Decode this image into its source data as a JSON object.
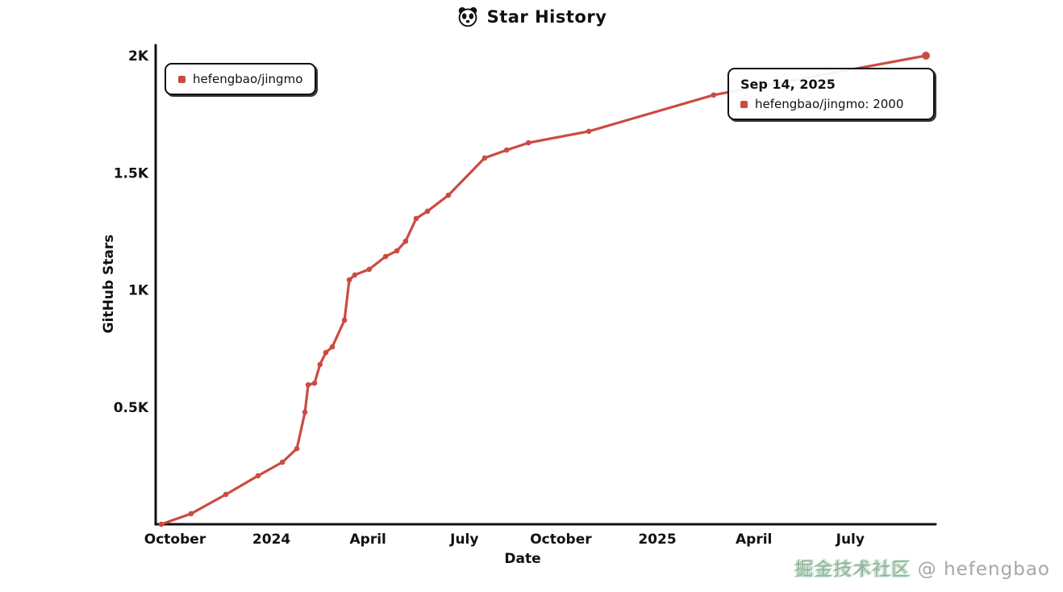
{
  "title": {
    "text": "Star History"
  },
  "legend": {
    "label": "hefengbao/jingmo"
  },
  "tooltip": {
    "date": "Sep 14, 2025",
    "label": "hefengbao/jingmo",
    "sep": ": ",
    "value": "2000"
  },
  "watermark": {
    "cn": "掘金技术社区",
    "rest": " @ hefengbao"
  },
  "chart_data": {
    "type": "line",
    "title": "Star History",
    "xlabel": "Date",
    "ylabel": "GitHub Stars",
    "x_unit": "months since October 2023",
    "ylim": [
      0,
      2000
    ],
    "grid": false,
    "legend_position": "top-left",
    "x_ticks": [
      {
        "label": "October",
        "m": 0
      },
      {
        "label": "2024",
        "m": 3
      },
      {
        "label": "April",
        "m": 6
      },
      {
        "label": "July",
        "m": 9
      },
      {
        "label": "October",
        "m": 12
      },
      {
        "label": "2025",
        "m": 15
      },
      {
        "label": "April",
        "m": 18
      },
      {
        "label": "July",
        "m": 21
      }
    ],
    "y_ticks": [
      {
        "label": "2K",
        "value": 2000
      },
      {
        "label": "1.5K",
        "value": 1500
      },
      {
        "label": "1K",
        "value": 1000
      },
      {
        "label": "0.5K",
        "value": 500
      }
    ],
    "series": [
      {
        "name": "hefengbao/jingmo",
        "color": "#cb4b42",
        "points": [
          [
            -0.43,
            0
          ],
          [
            0.5,
            45
          ],
          [
            1.58,
            127
          ],
          [
            2.58,
            207
          ],
          [
            3.34,
            265
          ],
          [
            3.79,
            323
          ],
          [
            4.04,
            478
          ],
          [
            4.14,
            595
          ],
          [
            4.34,
            602
          ],
          [
            4.51,
            682
          ],
          [
            4.69,
            733
          ],
          [
            4.89,
            757
          ],
          [
            5.27,
            871
          ],
          [
            5.42,
            1043
          ],
          [
            5.59,
            1064
          ],
          [
            6.04,
            1088
          ],
          [
            6.55,
            1143
          ],
          [
            6.9,
            1167
          ],
          [
            7.17,
            1208
          ],
          [
            7.5,
            1305
          ],
          [
            7.85,
            1336
          ],
          [
            8.5,
            1404
          ],
          [
            9.63,
            1563
          ],
          [
            10.31,
            1597
          ],
          [
            10.99,
            1628
          ],
          [
            12.87,
            1677
          ],
          [
            16.75,
            1832
          ],
          [
            23.35,
            2000
          ]
        ]
      }
    ],
    "end_annotation": {
      "date": "Sep 14, 2025",
      "series": "hefengbao/jingmo",
      "value": 2000
    }
  }
}
